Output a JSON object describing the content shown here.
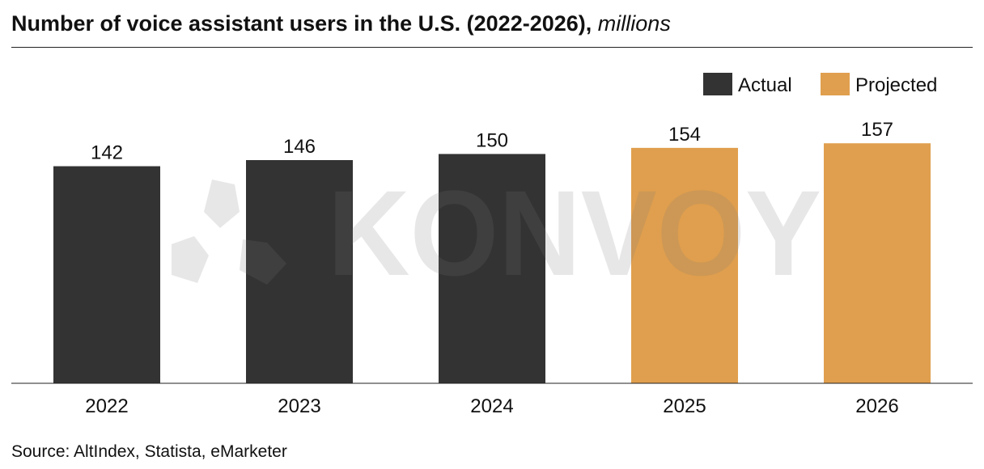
{
  "header": {
    "title": "Number of voice assistant users in the U.S. (2022-2026),",
    "unit": "millions"
  },
  "source": "Source: AltIndex, Statista, eMarketer",
  "watermark": "KONVOY",
  "chart_data": {
    "type": "bar",
    "title": "Number of voice assistant users in the U.S. (2022-2026), millions",
    "categories": [
      "2022",
      "2023",
      "2024",
      "2025",
      "2026"
    ],
    "values": [
      142,
      146,
      150,
      154,
      157
    ],
    "status": [
      "Actual",
      "Actual",
      "Actual",
      "Projected",
      "Projected"
    ],
    "legend": [
      {
        "name": "Actual",
        "color": "#333333"
      },
      {
        "name": "Projected",
        "color": "#E09F4E"
      }
    ],
    "legend_position": "top-right",
    "ylim": [
      0,
      210
    ],
    "grid": false,
    "data_labels": true
  }
}
